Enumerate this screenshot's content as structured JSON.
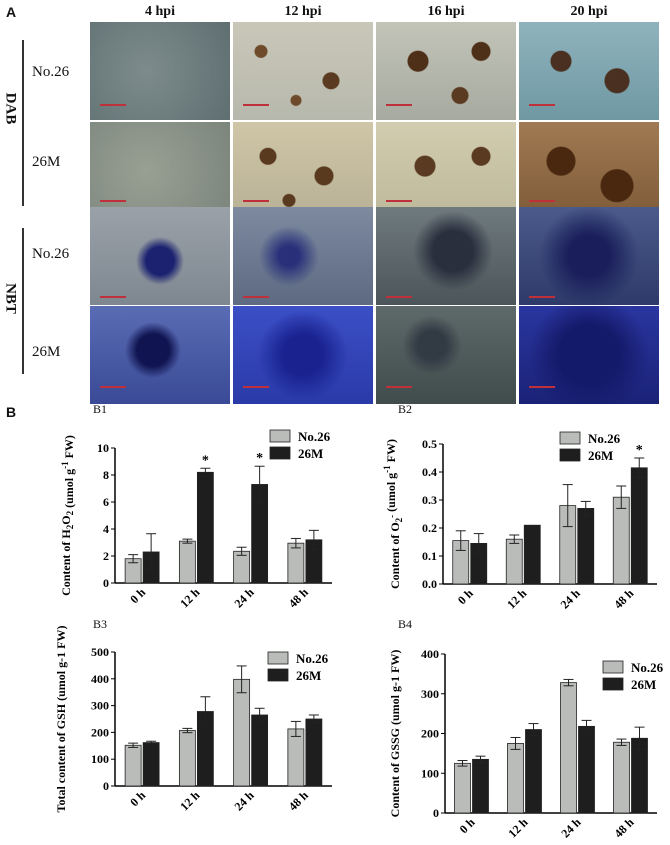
{
  "figure": {
    "panel_a_letter": "A",
    "panel_b_letter": "B",
    "columns": [
      "4 hpi",
      "12 hpi",
      "16 hpi",
      "20 hpi"
    ],
    "stains": [
      "DAB",
      "NBT"
    ],
    "rows": [
      "No.26",
      "26M",
      "No.26",
      "26M"
    ],
    "subpanels": [
      "B1",
      "B2",
      "B3",
      "B4"
    ]
  },
  "chart_data": [
    {
      "type": "bar",
      "categories": [
        "0 h",
        "12 h",
        "24 h",
        "48 h"
      ],
      "ylabel": "Content of H2O2 (umol g-1 FW)",
      "ylim": [
        0,
        10
      ],
      "yticks": [
        0,
        2,
        4,
        6,
        8,
        10
      ],
      "series": [
        {
          "name": "No.26",
          "values": [
            1.8,
            3.1,
            2.35,
            2.95
          ],
          "errors": [
            0.3,
            0.15,
            0.3,
            0.35
          ]
        },
        {
          "name": "26M",
          "values": [
            2.3,
            8.2,
            7.3,
            3.2
          ],
          "errors": [
            1.35,
            0.3,
            1.35,
            0.7
          ]
        }
      ],
      "significance": [
        "",
        "*",
        "*",
        ""
      ],
      "legend": "top-right"
    },
    {
      "type": "bar",
      "categories": [
        "0 h",
        "12 h",
        "24 h",
        "48 h"
      ],
      "ylabel": "Content of O2- (umol g-1 FW)",
      "ylim": [
        0,
        0.5
      ],
      "yticks": [
        0.0,
        0.1,
        0.2,
        0.3,
        0.4,
        0.5
      ],
      "series": [
        {
          "name": "No.26",
          "values": [
            0.155,
            0.16,
            0.28,
            0.31
          ],
          "errors": [
            0.035,
            0.015,
            0.075,
            0.04
          ]
        },
        {
          "name": "26M",
          "values": [
            0.145,
            0.21,
            0.27,
            0.415
          ],
          "errors": [
            0.035,
            0.0,
            0.025,
            0.035
          ]
        }
      ],
      "significance": [
        "",
        "",
        "",
        "*"
      ],
      "legend": "top-right"
    },
    {
      "type": "bar",
      "categories": [
        "0 h",
        "12 h",
        "24 h",
        "48 h"
      ],
      "ylabel": "Total content of GSH (umol g-1 FW)",
      "ylim": [
        0,
        500
      ],
      "yticks": [
        0,
        100,
        200,
        300,
        400,
        500
      ],
      "series": [
        {
          "name": "No.26",
          "values": [
            152,
            207,
            398,
            213
          ],
          "errors": [
            8,
            8,
            50,
            28
          ]
        },
        {
          "name": "26M",
          "values": [
            162,
            278,
            265,
            250
          ],
          "errors": [
            5,
            55,
            25,
            15
          ]
        }
      ],
      "significance": [
        "",
        "",
        "",
        ""
      ],
      "legend": "top-right"
    },
    {
      "type": "bar",
      "categories": [
        "0 h",
        "12 h",
        "24 h",
        "48 h"
      ],
      "ylabel": "Content of GSSG (umol g-1 FW)",
      "ylim": [
        0,
        400
      ],
      "yticks": [
        0,
        100,
        200,
        300,
        400
      ],
      "series": [
        {
          "name": "No.26",
          "values": [
            125,
            175,
            328,
            178
          ],
          "errors": [
            7,
            15,
            8,
            8
          ]
        },
        {
          "name": "26M",
          "values": [
            135,
            210,
            218,
            188
          ],
          "errors": [
            8,
            15,
            15,
            28
          ]
        }
      ],
      "significance": [
        "",
        "",
        "",
        ""
      ],
      "legend": "top-right"
    }
  ]
}
